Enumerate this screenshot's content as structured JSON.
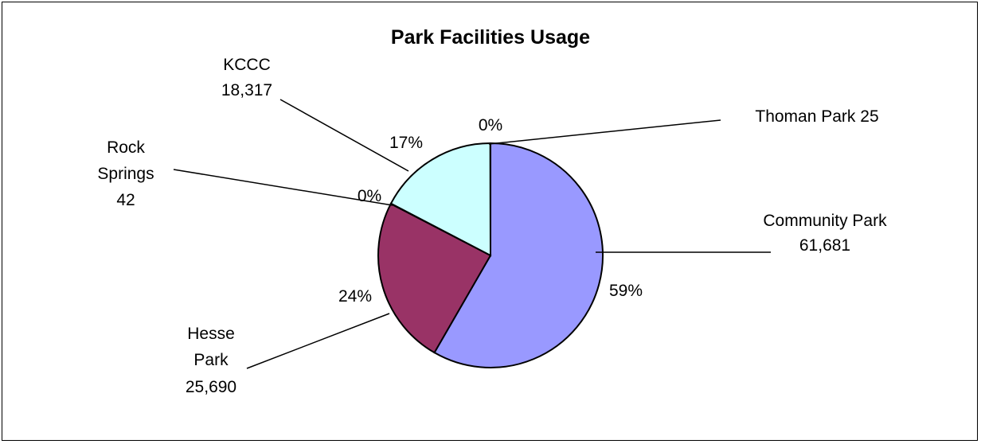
{
  "chart_data": {
    "type": "pie",
    "title": "Park Facilities Usage",
    "slices": [
      {
        "name": "Community Park",
        "value": 61681,
        "value_label": "61,681",
        "percent_label": "59%",
        "color": "#9999ff"
      },
      {
        "name": "Hesse Park",
        "value": 25690,
        "value_label": "25,690",
        "percent_label": "24%",
        "color": "#993366"
      },
      {
        "name": "Rock Springs",
        "value": 42,
        "value_label": "42",
        "percent_label": "0%",
        "color": "#000000"
      },
      {
        "name": "KCCC",
        "value": 18317,
        "value_label": "18,317",
        "percent_label": "17%",
        "color": "#ccffff"
      },
      {
        "name": "Thoman Park",
        "value": 25,
        "value_label": "25",
        "percent_label": "0%",
        "color": "#ffffcc"
      }
    ],
    "category_labels": {
      "community_park": [
        "Community Park",
        "61,681"
      ],
      "hesse_park": [
        "Hesse",
        "Park",
        "25,690"
      ],
      "rock_springs": [
        "Rock",
        "Springs",
        "42"
      ],
      "kccc": [
        "KCCC",
        "18,317"
      ],
      "thoman_park": [
        "Thoman Park 25"
      ]
    },
    "legend": "none",
    "outline_color": "#000000"
  }
}
